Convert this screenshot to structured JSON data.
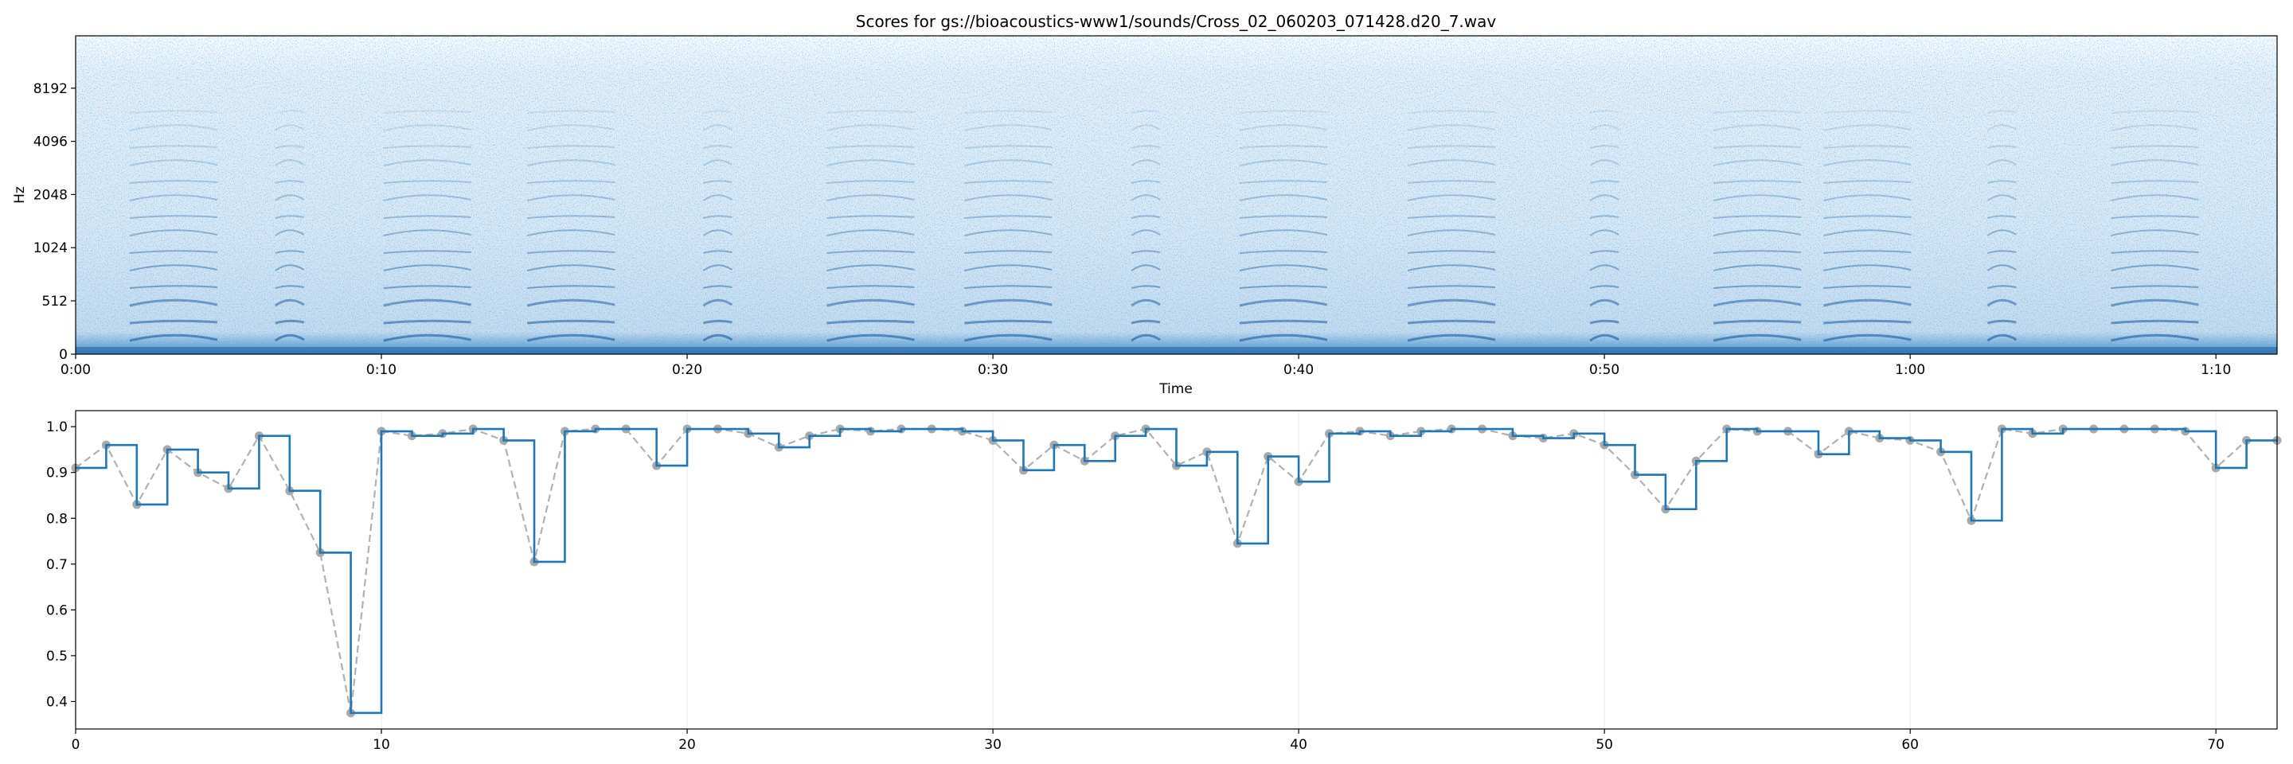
{
  "chart_data": [
    {
      "type": "heatmap",
      "title": "Scores for gs://bioacoustics-www1/sounds/Cross_02_060203_071428.d20_7.wav",
      "xlabel": "Time",
      "ylabel": "Hz",
      "xlim": [
        0,
        72
      ],
      "x_ticks": [
        {
          "value": 0,
          "label": "0:00"
        },
        {
          "value": 10,
          "label": "0:10"
        },
        {
          "value": 20,
          "label": "0:20"
        },
        {
          "value": 30,
          "label": "0:30"
        },
        {
          "value": 40,
          "label": "0:40"
        },
        {
          "value": 50,
          "label": "0:50"
        },
        {
          "value": 60,
          "label": "1:00"
        },
        {
          "value": 70,
          "label": "1:10"
        }
      ],
      "y_scale": "symlog",
      "y_ticks": [
        {
          "value": 0,
          "label": "0"
        },
        {
          "value": 512,
          "label": "512"
        },
        {
          "value": 1024,
          "label": "1024"
        },
        {
          "value": 2048,
          "label": "2048"
        },
        {
          "value": 4096,
          "label": "4096"
        },
        {
          "value": 8192,
          "label": "8192"
        }
      ],
      "colormap": "Blues",
      "description_colors": {
        "low": "#f3f8fd",
        "high": "#08519c"
      }
    },
    {
      "type": "line",
      "xlim": [
        0,
        72
      ],
      "ylim": [
        0.34,
        1.035
      ],
      "x_ticks": [
        0,
        10,
        20,
        30,
        40,
        50,
        60,
        70
      ],
      "y_ticks": [
        0.4,
        0.5,
        0.6,
        0.7,
        0.8,
        0.9,
        1.0
      ],
      "grid_x": true,
      "series": [
        {
          "style": "step",
          "color": "#1f77b4",
          "x": [
            0,
            1,
            2,
            3,
            4,
            5,
            6,
            7,
            8,
            9,
            10,
            11,
            12,
            13,
            14,
            15,
            16,
            17,
            18,
            19,
            20,
            21,
            22,
            23,
            24,
            25,
            26,
            27,
            28,
            29,
            30,
            31,
            32,
            33,
            34,
            35,
            36,
            37,
            38,
            39,
            40,
            41,
            42,
            43,
            44,
            45,
            46,
            47,
            48,
            49,
            50,
            51,
            52,
            53,
            54,
            55,
            56,
            57,
            58,
            59,
            60,
            61,
            62,
            63,
            64,
            65,
            66,
            67,
            68,
            69,
            70,
            71
          ],
          "values": [
            0.91,
            0.96,
            0.83,
            0.95,
            0.9,
            0.865,
            0.98,
            0.86,
            0.725,
            0.375,
            0.99,
            0.98,
            0.985,
            0.995,
            0.97,
            0.705,
            0.99,
            0.995,
            0.995,
            0.915,
            0.995,
            0.995,
            0.985,
            0.955,
            0.98,
            0.995,
            0.99,
            0.995,
            0.995,
            0.99,
            0.97,
            0.905,
            0.96,
            0.925,
            0.98,
            0.995,
            0.915,
            0.945,
            0.745,
            0.935,
            0.88,
            0.985,
            0.99,
            0.98,
            0.99,
            0.995,
            0.995,
            0.98,
            0.975,
            0.985,
            0.96,
            0.895,
            0.82,
            0.925,
            0.995,
            0.99,
            0.99,
            0.94,
            0.99,
            0.975,
            0.97,
            0.945,
            0.795,
            0.995,
            0.985,
            0.995,
            0.995,
            0.995,
            0.995,
            0.99,
            0.91,
            0.97
          ]
        },
        {
          "style": "dashed-with-markers",
          "color": "#b0b0b0",
          "x": [
            0,
            1,
            2,
            3,
            4,
            5,
            6,
            7,
            8,
            9,
            10,
            11,
            12,
            13,
            14,
            15,
            16,
            17,
            18,
            19,
            20,
            21,
            22,
            23,
            24,
            25,
            26,
            27,
            28,
            29,
            30,
            31,
            32,
            33,
            34,
            35,
            36,
            37,
            38,
            39,
            40,
            41,
            42,
            43,
            44,
            45,
            46,
            47,
            48,
            49,
            50,
            51,
            52,
            53,
            54,
            55,
            56,
            57,
            58,
            59,
            60,
            61,
            62,
            63,
            64,
            65,
            66,
            67,
            68,
            69,
            70,
            71,
            72
          ],
          "values": [
            0.91,
            0.96,
            0.83,
            0.95,
            0.9,
            0.865,
            0.98,
            0.86,
            0.725,
            0.375,
            0.99,
            0.98,
            0.985,
            0.995,
            0.97,
            0.705,
            0.99,
            0.995,
            0.995,
            0.915,
            0.995,
            0.995,
            0.985,
            0.955,
            0.98,
            0.995,
            0.99,
            0.995,
            0.995,
            0.99,
            0.97,
            0.905,
            0.96,
            0.925,
            0.98,
            0.995,
            0.915,
            0.945,
            0.745,
            0.935,
            0.88,
            0.985,
            0.99,
            0.98,
            0.99,
            0.995,
            0.995,
            0.98,
            0.975,
            0.985,
            0.96,
            0.895,
            0.82,
            0.925,
            0.995,
            0.99,
            0.99,
            0.94,
            0.99,
            0.975,
            0.97,
            0.945,
            0.795,
            0.995,
            0.985,
            0.995,
            0.995,
            0.995,
            0.995,
            0.99,
            0.91,
            0.97,
            0.97
          ]
        }
      ]
    }
  ]
}
